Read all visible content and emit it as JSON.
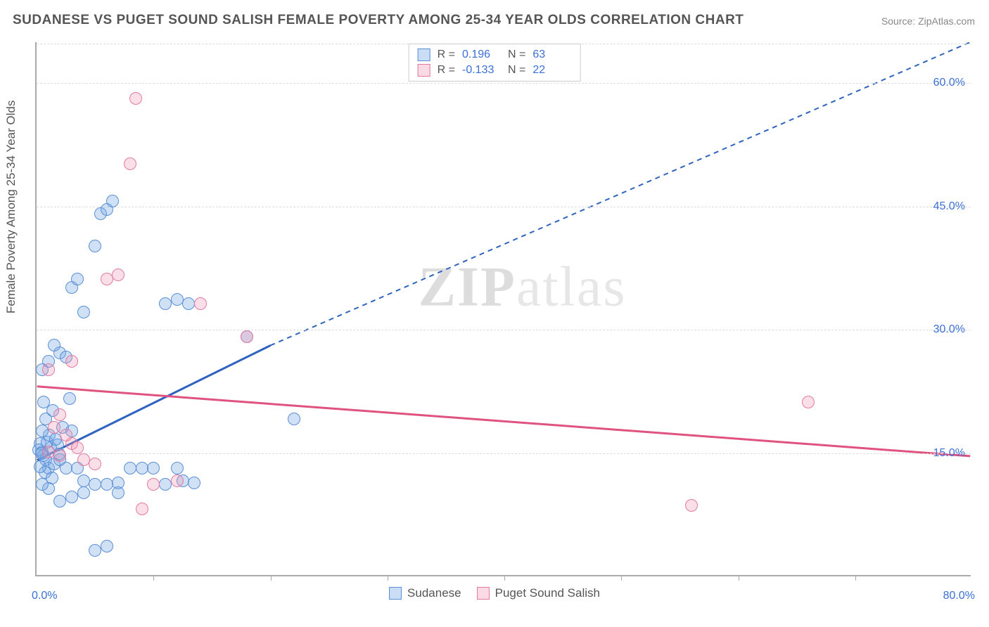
{
  "title": "SUDANESE VS PUGET SOUND SALISH FEMALE POVERTY AMONG 25-34 YEAR OLDS CORRELATION CHART",
  "source_prefix": "Source: ",
  "source_name": "ZipAtlas.com",
  "ylabel": "Female Poverty Among 25-34 Year Olds",
  "watermark_a": "ZIP",
  "watermark_b": "atlas",
  "chart": {
    "type": "scatter",
    "xlim": [
      0,
      80
    ],
    "ylim": [
      0,
      65
    ],
    "x_origin_label": "0.0%",
    "x_max_label": "80.0%",
    "y_ticks": [
      15,
      30,
      45,
      60
    ],
    "y_tick_labels": [
      "15.0%",
      "30.0%",
      "45.0%",
      "60.0%"
    ],
    "x_tick_positions": [
      10,
      20,
      30,
      40,
      50,
      60,
      70
    ],
    "grid_color": "#dddddd",
    "axis_color": "#aaaaaa",
    "axis_label_color": "#3b6fd6",
    "background_color": "#ffffff",
    "point_radius": 9,
    "series": [
      {
        "name": "Sudanese",
        "color_fill": "rgba(120,170,230,0.35)",
        "color_stroke": "#5a8fd6",
        "R": "0.196",
        "N": "63",
        "trend": {
          "x1": 0,
          "y1": 14,
          "x2_solid": 20,
          "y2_solid": 28,
          "x2": 80,
          "y2": 65,
          "color": "#2f63c0"
        },
        "points": [
          [
            0.5,
            15
          ],
          [
            0.8,
            14
          ],
          [
            1,
            13
          ],
          [
            0.3,
            16
          ],
          [
            1.2,
            15.5
          ],
          [
            0.6,
            14.5
          ],
          [
            1.5,
            13.5
          ],
          [
            0.2,
            15.2
          ],
          [
            0.9,
            16.2
          ],
          [
            0.4,
            14.8
          ],
          [
            1.1,
            17
          ],
          [
            2,
            14
          ],
          [
            1.8,
            15.8
          ],
          [
            0.7,
            12.5
          ],
          [
            1.3,
            11.8
          ],
          [
            2.5,
            13
          ],
          [
            1.6,
            16.5
          ],
          [
            0.5,
            17.5
          ],
          [
            0.3,
            13.2
          ],
          [
            1.9,
            14.7
          ],
          [
            2.2,
            18
          ],
          [
            3,
            17.5
          ],
          [
            0.8,
            19
          ],
          [
            1.4,
            20
          ],
          [
            0.6,
            21
          ],
          [
            2.8,
            21.5
          ],
          [
            3.5,
            13
          ],
          [
            4,
            11.5
          ],
          [
            5,
            11
          ],
          [
            6,
            11
          ],
          [
            7,
            11.2
          ],
          [
            8,
            13
          ],
          [
            9,
            13
          ],
          [
            10,
            13
          ],
          [
            12,
            13
          ],
          [
            0.5,
            25
          ],
          [
            1,
            26
          ],
          [
            2,
            27
          ],
          [
            1.5,
            28
          ],
          [
            2.5,
            26.5
          ],
          [
            3,
            35
          ],
          [
            3.5,
            36
          ],
          [
            5,
            40
          ],
          [
            5.5,
            44
          ],
          [
            6,
            44.5
          ],
          [
            6.5,
            45.5
          ],
          [
            4,
            32
          ],
          [
            11,
            33
          ],
          [
            12,
            33.5
          ],
          [
            13,
            33
          ],
          [
            18,
            29
          ],
          [
            22,
            19
          ],
          [
            5,
            3
          ],
          [
            6,
            3.5
          ],
          [
            2,
            9
          ],
          [
            3,
            9.5
          ],
          [
            4,
            10
          ],
          [
            1,
            10.5
          ],
          [
            0.5,
            11
          ],
          [
            7,
            10
          ],
          [
            11,
            11
          ],
          [
            12.5,
            11.5
          ],
          [
            13.5,
            11.2
          ]
        ]
      },
      {
        "name": "Puget Sound Salish",
        "color_fill": "rgba(240,150,180,0.3)",
        "color_stroke": "#e27aa0",
        "R": "-0.133",
        "N": "22",
        "trend": {
          "x1": 0,
          "y1": 23,
          "x2_solid": 80,
          "y2_solid": 14.5,
          "x2": 80,
          "y2": 14.5,
          "color": "#e0527f"
        },
        "points": [
          [
            1,
            15
          ],
          [
            2,
            14.5
          ],
          [
            3,
            16
          ],
          [
            2.5,
            17
          ],
          [
            1.5,
            18
          ],
          [
            3.5,
            15.5
          ],
          [
            4,
            14
          ],
          [
            5,
            13.5
          ],
          [
            2,
            19.5
          ],
          [
            1,
            25
          ],
          [
            3,
            26
          ],
          [
            6,
            36
          ],
          [
            7,
            36.5
          ],
          [
            8,
            50
          ],
          [
            8.5,
            58
          ],
          [
            14,
            33
          ],
          [
            18,
            29
          ],
          [
            9,
            8
          ],
          [
            56,
            8.5
          ],
          [
            66,
            21
          ],
          [
            12,
            11.5
          ],
          [
            10,
            11
          ]
        ]
      }
    ]
  },
  "legend_top": {
    "R_label": "R = ",
    "N_label": "N = "
  },
  "legend_bottom": [
    {
      "swatch": "blue",
      "label": "Sudanese"
    },
    {
      "swatch": "pink",
      "label": "Puget Sound Salish"
    }
  ]
}
